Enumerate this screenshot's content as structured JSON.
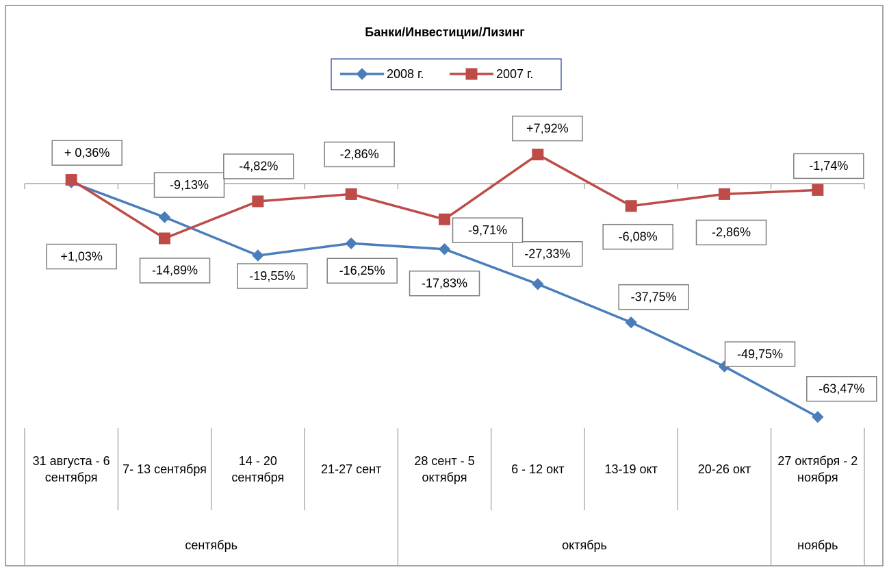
{
  "chart_data": {
    "type": "line",
    "title": "Банки/Инвестиции/Лизинг",
    "categories": [
      "31 августа - 6 сентября",
      "7- 13 сентября",
      "14 - 20 сентября",
      "21-27 сент",
      "28 сент - 5 октября",
      "6 - 12 окт",
      "13-19 окт",
      "20-26 окт",
      "27 октября - 2 ноября"
    ],
    "groups": [
      {
        "label": "сентябрь",
        "count": 4
      },
      {
        "label": "октябрь",
        "count": 4
      },
      {
        "label": "ноябрь",
        "count": 1
      }
    ],
    "series": [
      {
        "name": "2008 г.",
        "color": "#4a7ebb",
        "marker": "diamond",
        "values": [
          0.36,
          -9.13,
          -19.55,
          -16.25,
          -17.83,
          -27.33,
          -37.75,
          -49.75,
          -63.47
        ],
        "value_labels": [
          "+ 0,36%",
          "-9,13%",
          "-19,55%",
          "-16,25%",
          "-17,83%",
          "-27,33%",
          "-37,75%",
          "-49,75%",
          "-63,47%"
        ]
      },
      {
        "name": "2007 г.",
        "color": "#be4b48",
        "marker": "square",
        "values": [
          1.03,
          -14.89,
          -4.82,
          -2.86,
          -9.71,
          7.92,
          -6.08,
          -2.86,
          -1.74
        ],
        "value_labels": [
          "+1,03%",
          "-14,89%",
          "-4,82%",
          "-2,86%",
          "-9,71%",
          "+7,92%",
          "-6,08%",
          "-2,86%",
          "-1,74%"
        ]
      }
    ],
    "ylim": [
      -66.5,
      22
    ],
    "legend": "top"
  }
}
